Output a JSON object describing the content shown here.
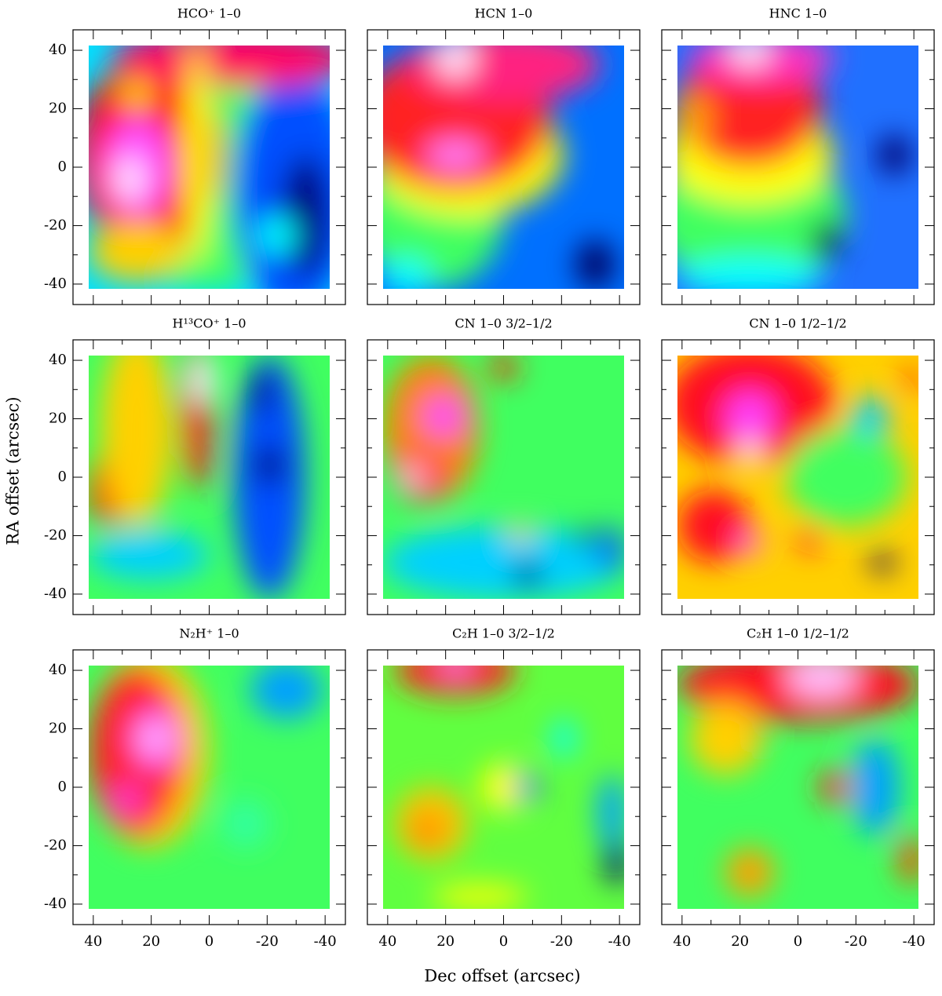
{
  "x_label": "Dec offset (arcsec)",
  "y_label": "RA offset (arcsec)",
  "chart_data": [
    {
      "type": "heatmap",
      "title": "HCO⁺ 1–0",
      "xlim": [
        47,
        -47
      ],
      "ylim": [
        -47,
        47
      ],
      "xticks": [
        40,
        20,
        0,
        -20,
        -40
      ],
      "yticks": [
        -40,
        -20,
        0,
        20,
        40
      ]
    },
    {
      "type": "heatmap",
      "title": "HCN 1–0",
      "xlim": [
        47,
        -47
      ],
      "ylim": [
        -47,
        47
      ],
      "xticks": [
        40,
        20,
        0,
        -20,
        -40
      ],
      "yticks": [
        -40,
        -20,
        0,
        20,
        40
      ]
    },
    {
      "type": "heatmap",
      "title": "HNC 1–0",
      "xlim": [
        47,
        -47
      ],
      "ylim": [
        -47,
        47
      ],
      "xticks": [
        40,
        20,
        0,
        -20,
        -40
      ],
      "yticks": [
        -40,
        -20,
        0,
        20,
        40
      ]
    },
    {
      "type": "heatmap",
      "title": "H¹³CO⁺ 1–0",
      "xlim": [
        47,
        -47
      ],
      "ylim": [
        -47,
        47
      ],
      "xticks": [
        40,
        20,
        0,
        -20,
        -40
      ],
      "yticks": [
        -40,
        -20,
        0,
        20,
        40
      ]
    },
    {
      "type": "heatmap",
      "title": "CN 1–0 3/2–1/2",
      "xlim": [
        47,
        -47
      ],
      "ylim": [
        -47,
        47
      ],
      "xticks": [
        40,
        20,
        0,
        -20,
        -40
      ],
      "yticks": [
        -40,
        -20,
        0,
        20,
        40
      ]
    },
    {
      "type": "heatmap",
      "title": "CN 1–0 1/2–1/2",
      "xlim": [
        47,
        -47
      ],
      "ylim": [
        -47,
        47
      ],
      "xticks": [
        40,
        20,
        0,
        -20,
        -40
      ],
      "yticks": [
        -40,
        -20,
        0,
        20,
        40
      ]
    },
    {
      "type": "heatmap",
      "title": "N₂H⁺ 1–0",
      "xlim": [
        47,
        -47
      ],
      "ylim": [
        -47,
        47
      ],
      "xticks": [
        40,
        20,
        0,
        -20,
        -40
      ],
      "yticks": [
        -40,
        -20,
        0,
        20,
        40
      ]
    },
    {
      "type": "heatmap",
      "title": "C₂H 1–0 3/2–1/2",
      "xlim": [
        47,
        -47
      ],
      "ylim": [
        -47,
        47
      ],
      "xticks": [
        40,
        20,
        0,
        -20,
        -40
      ],
      "yticks": [
        -40,
        -20,
        0,
        20,
        40
      ]
    },
    {
      "type": "heatmap",
      "title": "C₂H 1–0 1/2–1/2",
      "xlim": [
        47,
        -47
      ],
      "ylim": [
        -47,
        47
      ],
      "xticks": [
        40,
        20,
        0,
        -20,
        -40
      ],
      "yticks": [
        -40,
        -20,
        0,
        20,
        40
      ]
    }
  ]
}
